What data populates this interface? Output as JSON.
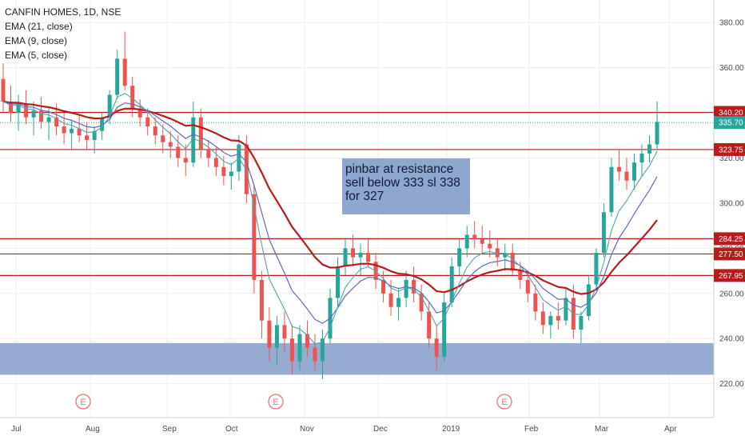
{
  "legend": {
    "symbol": "CANFIN HOMES, 1D, NSE",
    "ema21": "EMA (21, close)",
    "ema9": "EMA (9, close)",
    "ema5": "EMA (5, close)"
  },
  "annotation": {
    "line1": "pinbar at resistance",
    "line2": "sell below 333 sl 338",
    "line3": "for 327"
  },
  "colors": {
    "up": "#26a69a",
    "down": "#ef5350",
    "ema21": "#b71c1c",
    "ema9": "#5c6bc0",
    "ema5": "#4fa3a8",
    "level_line": "#b71c1c",
    "last_price_line": "#26a69a",
    "support_zone": "#8fa6cf",
    "earnings": "#e57373"
  },
  "chart_data": {
    "type": "candlestick",
    "y_axis": {
      "range": [
        205,
        390
      ],
      "ticks": [
        220,
        240,
        260,
        280,
        300,
        320,
        340,
        360,
        380
      ],
      "tick_labels": [
        "220.00",
        "240.00",
        "260.00",
        "280.00",
        "300.00",
        "320.00",
        "340.00",
        "360.00",
        "380.00"
      ]
    },
    "x_axis": {
      "ticks": [
        "Jul",
        "Aug",
        "Sep",
        "Oct",
        "Nov",
        "Dec",
        "2019",
        "Feb",
        "Mar",
        "Apr"
      ]
    },
    "horizontal_levels": [
      {
        "value": 340.2,
        "label": "340.20"
      },
      {
        "value": 323.75,
        "label": "323.75"
      },
      {
        "value": 284.25,
        "label": "284.25"
      },
      {
        "value": 277.5,
        "label": "277.50"
      },
      {
        "value": 267.95,
        "label": "267.95"
      }
    ],
    "last_price": {
      "value": 335.7,
      "label": "335.70"
    },
    "support_zone": {
      "from": 224,
      "to": 238
    },
    "earnings_markers": [
      {
        "month": "Aug",
        "label": "E"
      },
      {
        "month": "Oct",
        "label": "E"
      },
      {
        "month": "Jan",
        "label": "E"
      }
    ],
    "candles_approx": [
      [
        355,
        362,
        340,
        345
      ],
      [
        345,
        352,
        336,
        340
      ],
      [
        340,
        348,
        332,
        344
      ],
      [
        344,
        350,
        335,
        338
      ],
      [
        338,
        345,
        330,
        341
      ],
      [
        341,
        347,
        333,
        336
      ],
      [
        336,
        342,
        328,
        338
      ],
      [
        338,
        344,
        330,
        334
      ],
      [
        334,
        340,
        326,
        331
      ],
      [
        331,
        337,
        324,
        333
      ],
      [
        333,
        339,
        327,
        330
      ],
      [
        330,
        336,
        324,
        328
      ],
      [
        328,
        334,
        322,
        332
      ],
      [
        332,
        340,
        328,
        338
      ],
      [
        338,
        350,
        335,
        348
      ],
      [
        348,
        368,
        346,
        364
      ],
      [
        364,
        376,
        350,
        352
      ],
      [
        352,
        356,
        338,
        342
      ],
      [
        342,
        346,
        334,
        338
      ],
      [
        338,
        342,
        330,
        334
      ],
      [
        334,
        338,
        326,
        330
      ],
      [
        330,
        335,
        322,
        327
      ],
      [
        327,
        332,
        320,
        325
      ],
      [
        325,
        330,
        316,
        320
      ],
      [
        320,
        326,
        312,
        318
      ],
      [
        318,
        345,
        316,
        338
      ],
      [
        338,
        342,
        320,
        324
      ],
      [
        324,
        328,
        316,
        320
      ],
      [
        320,
        325,
        312,
        316
      ],
      [
        316,
        321,
        308,
        312
      ],
      [
        312,
        318,
        306,
        314
      ],
      [
        314,
        330,
        310,
        326
      ],
      [
        326,
        330,
        300,
        304
      ],
      [
        304,
        308,
        260,
        266
      ],
      [
        266,
        270,
        240,
        248
      ],
      [
        248,
        254,
        230,
        236
      ],
      [
        236,
        250,
        228,
        246
      ],
      [
        246,
        252,
        234,
        240
      ],
      [
        240,
        246,
        224,
        230
      ],
      [
        230,
        246,
        226,
        242
      ],
      [
        242,
        248,
        232,
        236
      ],
      [
        236,
        242,
        226,
        230
      ],
      [
        230,
        244,
        222,
        240
      ],
      [
        240,
        262,
        238,
        258
      ],
      [
        258,
        276,
        254,
        272
      ],
      [
        272,
        284,
        268,
        280
      ],
      [
        280,
        286,
        272,
        276
      ],
      [
        276,
        282,
        268,
        278
      ],
      [
        278,
        284,
        272,
        274
      ],
      [
        274,
        278,
        262,
        266
      ],
      [
        266,
        270,
        256,
        260
      ],
      [
        260,
        266,
        250,
        254
      ],
      [
        254,
        262,
        248,
        258
      ],
      [
        258,
        270,
        254,
        266
      ],
      [
        266,
        272,
        256,
        260
      ],
      [
        260,
        264,
        248,
        252
      ],
      [
        252,
        256,
        236,
        240
      ],
      [
        240,
        246,
        226,
        232
      ],
      [
        232,
        260,
        230,
        256
      ],
      [
        256,
        276,
        254,
        272
      ],
      [
        272,
        284,
        268,
        280
      ],
      [
        280,
        290,
        276,
        286
      ],
      [
        286,
        292,
        280,
        284
      ],
      [
        284,
        290,
        278,
        282
      ],
      [
        282,
        288,
        276,
        280
      ],
      [
        280,
        284,
        272,
        276
      ],
      [
        276,
        282,
        270,
        278
      ],
      [
        278,
        282,
        268,
        270
      ],
      [
        270,
        274,
        262,
        266
      ],
      [
        266,
        270,
        256,
        260
      ],
      [
        260,
        264,
        248,
        252
      ],
      [
        252,
        256,
        242,
        246
      ],
      [
        246,
        252,
        240,
        250
      ],
      [
        250,
        256,
        244,
        248
      ],
      [
        248,
        262,
        246,
        258
      ],
      [
        258,
        264,
        240,
        244
      ],
      [
        244,
        252,
        238,
        250
      ],
      [
        250,
        268,
        248,
        264
      ],
      [
        264,
        280,
        262,
        278
      ],
      [
        278,
        300,
        276,
        296
      ],
      [
        296,
        320,
        294,
        316
      ],
      [
        316,
        324,
        310,
        314
      ],
      [
        314,
        320,
        306,
        310
      ],
      [
        310,
        322,
        306,
        318
      ],
      [
        318,
        326,
        312,
        322
      ],
      [
        322,
        330,
        318,
        326
      ],
      [
        326,
        345,
        324,
        336
      ]
    ]
  }
}
